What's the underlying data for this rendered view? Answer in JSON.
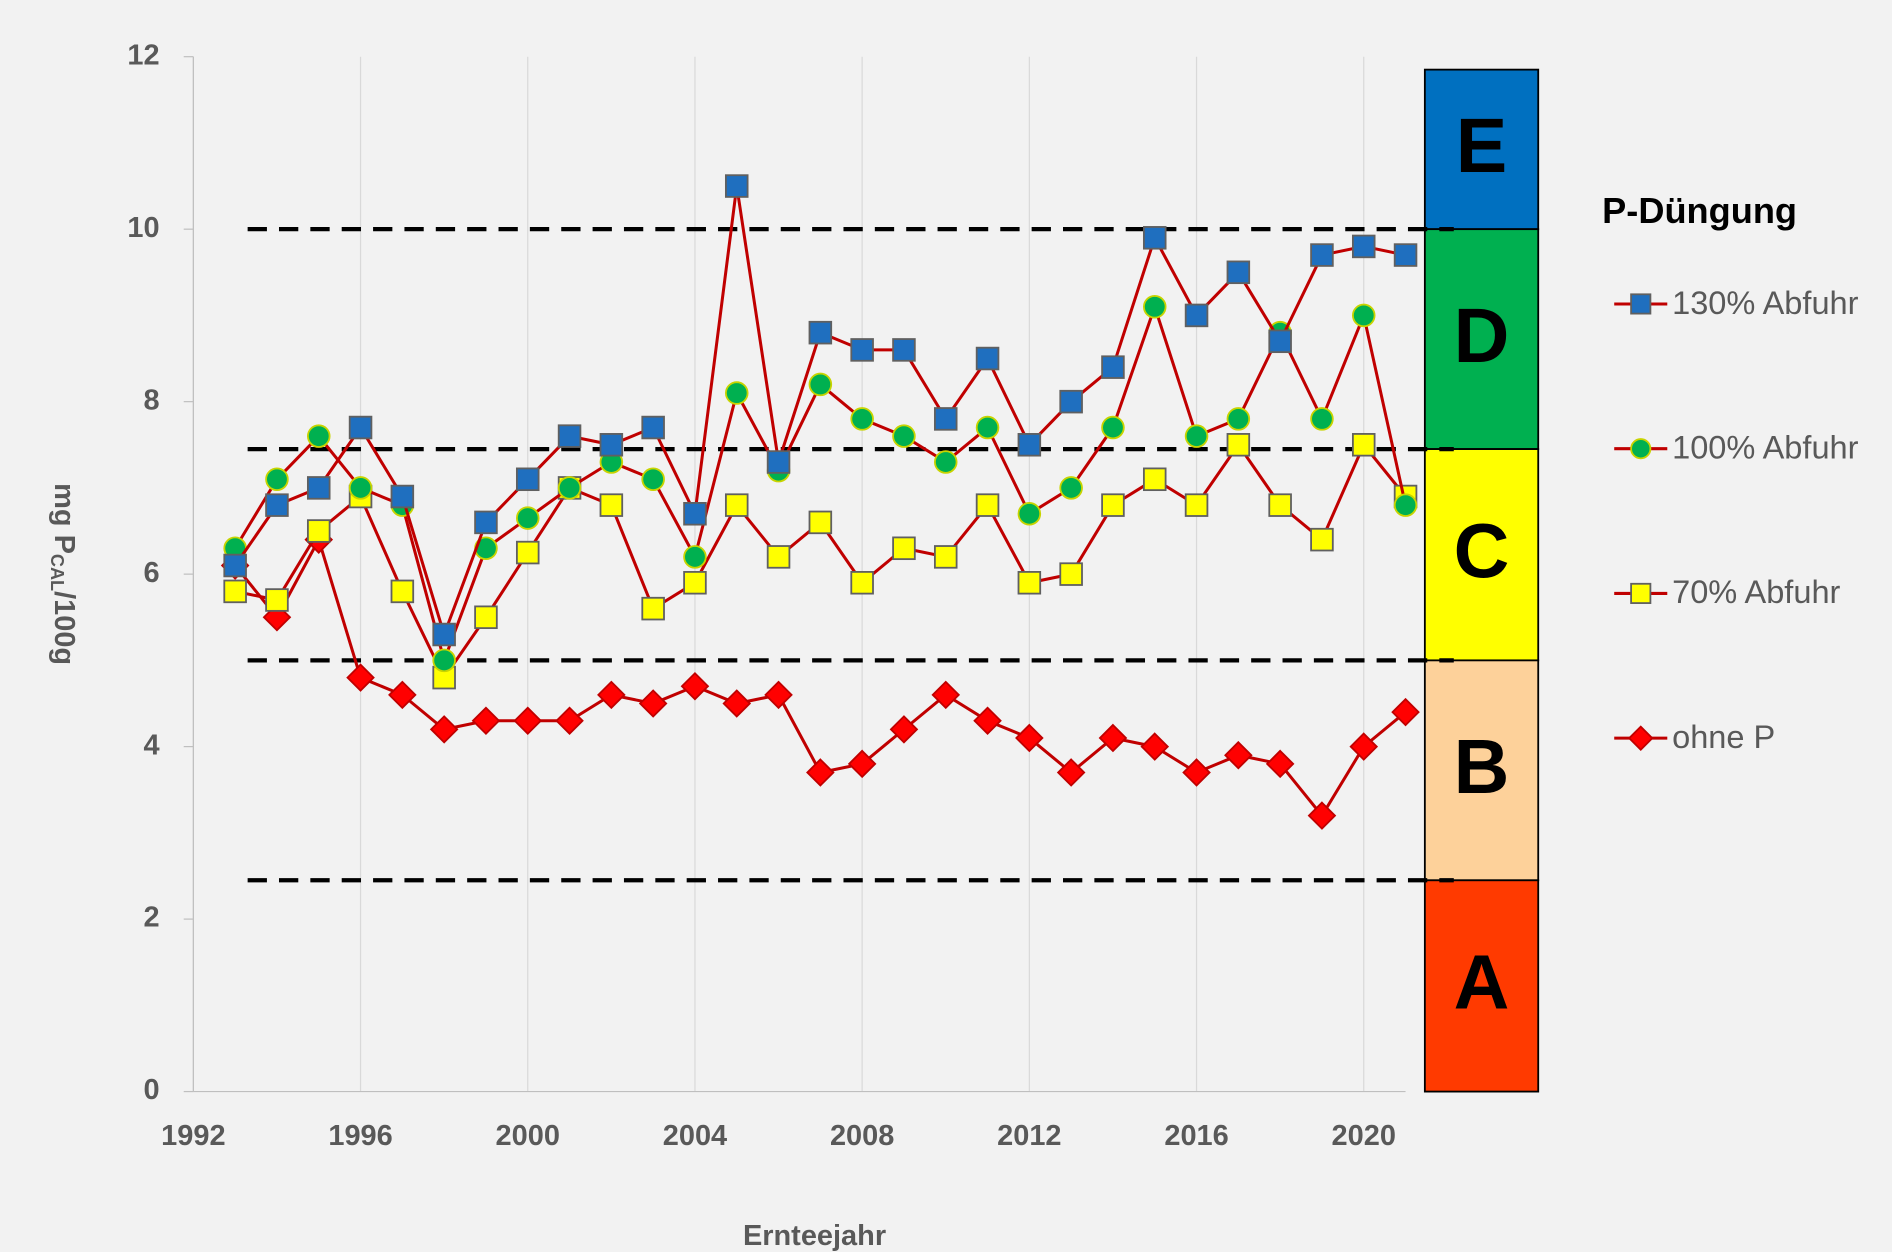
{
  "chart_data": {
    "type": "line",
    "x_label": "Ernteejahr",
    "y_label": {
      "main": "mg P",
      "sub": "CAL",
      "rest": "/100g"
    },
    "legend_title": "P-Düngung",
    "x": [
      1993,
      1994,
      1995,
      1996,
      1997,
      1998,
      1999,
      2000,
      2001,
      2002,
      2003,
      2004,
      2005,
      2006,
      2007,
      2008,
      2009,
      2010,
      2011,
      2012,
      2013,
      2014,
      2015,
      2016,
      2017,
      2018,
      2019,
      2020,
      2021
    ],
    "series": [
      {
        "name": "130% Abfuhr",
        "color": "#1f6fbf",
        "marker": "square",
        "values": [
          6.1,
          6.8,
          7.0,
          7.7,
          6.9,
          5.3,
          6.6,
          7.1,
          7.6,
          7.5,
          7.7,
          6.7,
          10.5,
          7.3,
          8.8,
          8.6,
          8.6,
          7.8,
          8.5,
          7.5,
          8.0,
          8.4,
          9.9,
          9.0,
          9.5,
          8.7,
          9.7,
          9.8,
          9.7
        ]
      },
      {
        "name": "100% Abfuhr",
        "color": "#00b050",
        "marker": "circle",
        "values": [
          6.3,
          7.1,
          7.6,
          7.0,
          6.8,
          5.0,
          6.3,
          6.65,
          7.0,
          7.3,
          7.1,
          6.2,
          8.1,
          7.2,
          8.2,
          7.8,
          7.6,
          7.3,
          7.7,
          6.7,
          7.0,
          7.7,
          9.1,
          7.6,
          7.8,
          8.8,
          7.8,
          9.0,
          6.8
        ]
      },
      {
        "name": "70% Abfuhr",
        "color": "#ffff00",
        "marker": "square",
        "values": [
          5.8,
          5.7,
          6.5,
          6.9,
          5.8,
          4.8,
          5.5,
          6.25,
          7.0,
          6.8,
          5.6,
          5.9,
          6.8,
          6.2,
          6.6,
          5.9,
          6.3,
          6.2,
          6.8,
          5.9,
          6.0,
          6.8,
          7.1,
          6.8,
          7.5,
          6.8,
          6.4,
          7.5,
          6.9
        ]
      },
      {
        "name": "ohne P",
        "color": "#ff0000",
        "marker": "diamond",
        "values": [
          6.1,
          5.5,
          6.4,
          4.8,
          4.6,
          4.2,
          4.3,
          4.3,
          4.3,
          4.6,
          4.5,
          4.7,
          4.5,
          4.6,
          3.7,
          3.8,
          4.2,
          4.6,
          4.3,
          4.1,
          3.7,
          4.1,
          4.0,
          3.7,
          3.9,
          3.8,
          3.2,
          4.0,
          4.4
        ]
      }
    ],
    "line_color": "#c00000",
    "xlim": [
      1992,
      2021
    ],
    "xticks": [
      1992,
      1996,
      2000,
      2004,
      2008,
      2012,
      2016,
      2020
    ],
    "ylim": [
      0,
      12
    ],
    "yticks": [
      0,
      2,
      4,
      6,
      8,
      10,
      12
    ],
    "grid": true,
    "thresholds": [
      10,
      7.45,
      5,
      2.45
    ],
    "classes": [
      {
        "label": "E",
        "from": 10,
        "to": 11.85,
        "color": "#0070c0"
      },
      {
        "label": "D",
        "from": 7.45,
        "to": 10,
        "color": "#00b050"
      },
      {
        "label": "C",
        "from": 5,
        "to": 7.45,
        "color": "#ffff00"
      },
      {
        "label": "B",
        "from": 2.45,
        "to": 5,
        "color": "#fdd19a"
      },
      {
        "label": "A",
        "from": 0,
        "to": 2.45,
        "color": "#ff3a00"
      }
    ]
  }
}
